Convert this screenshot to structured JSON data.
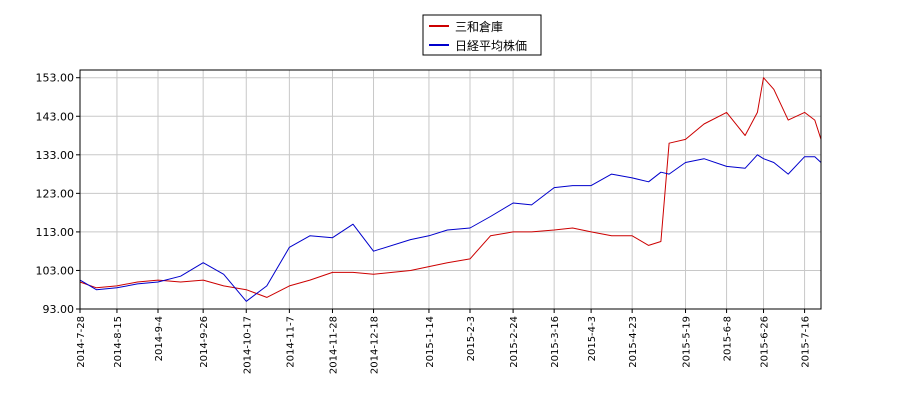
{
  "chart_data": {
    "type": "line",
    "title": "",
    "xlabel": "",
    "ylabel": "",
    "ylim": [
      93,
      155
    ],
    "yticks": [
      "93.00",
      "103.00",
      "113.00",
      "123.00",
      "133.00",
      "143.00",
      "153.00"
    ],
    "xticks": [
      "2014-7-28",
      "2014-8-15",
      "2014-9-4",
      "2014-9-26",
      "2014-10-17",
      "2014-11-7",
      "2014-11-28",
      "2014-12-18",
      "2015-1-14",
      "2015-2-3",
      "2015-2-24",
      "2015-3-16",
      "2015-4-3",
      "2015-4-23",
      "2015-5-19",
      "2015-6-8",
      "2015-6-26",
      "2015-7-16"
    ],
    "grid": true,
    "legend": "top-center",
    "x": [
      "2014-7-28",
      "2014-8-5",
      "2014-8-15",
      "2014-8-25",
      "2014-9-4",
      "2014-9-15",
      "2014-9-26",
      "2014-10-6",
      "2014-10-17",
      "2014-10-27",
      "2014-11-7",
      "2014-11-17",
      "2014-11-28",
      "2014-12-8",
      "2014-12-18",
      "2015-1-5",
      "2015-1-14",
      "2015-1-23",
      "2015-2-3",
      "2015-2-13",
      "2015-2-24",
      "2015-3-5",
      "2015-3-16",
      "2015-3-25",
      "2015-4-3",
      "2015-4-13",
      "2015-4-23",
      "2015-5-1",
      "2015-5-7",
      "2015-5-11",
      "2015-5-19",
      "2015-5-28",
      "2015-6-8",
      "2015-6-17",
      "2015-6-23",
      "2015-6-26",
      "2015-7-1",
      "2015-7-8",
      "2015-7-16",
      "2015-7-21",
      "2015-7-24"
    ],
    "series": [
      {
        "name": "三和倉庫",
        "color": "#cc0000",
        "values": [
          100,
          98.5,
          99,
          100,
          100.5,
          100,
          100.5,
          99,
          98,
          96,
          99,
          100.5,
          102.5,
          102.5,
          102,
          103,
          104,
          105,
          106,
          112,
          113,
          113,
          113.5,
          114,
          113,
          112,
          112,
          109.5,
          110.5,
          136,
          137,
          141,
          144,
          138,
          144,
          153,
          150,
          142,
          144,
          142,
          137
        ]
      },
      {
        "name": "日経平均株価",
        "color": "#0000cc",
        "values": [
          100.5,
          98,
          98.5,
          99.5,
          100,
          101.5,
          105,
          102,
          95,
          99,
          109,
          112,
          111.5,
          115,
          108,
          111,
          112,
          113.5,
          114,
          117,
          120.5,
          120,
          124.5,
          125,
          125,
          128,
          127,
          126,
          128.5,
          128,
          131,
          132,
          130,
          129.5,
          133,
          132,
          131,
          128,
          132.5,
          132.5,
          131
        ]
      }
    ]
  }
}
